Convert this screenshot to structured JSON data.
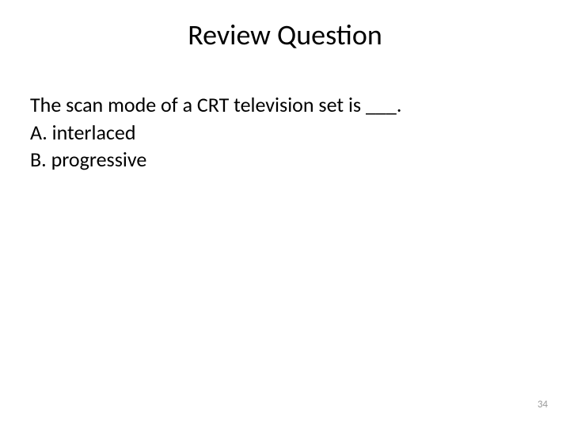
{
  "slide": {
    "title": "Review Question",
    "question": "The scan mode of a CRT television set is ___.",
    "options": [
      {
        "letter": "A.",
        "text": "interlaced"
      },
      {
        "letter": "B.",
        "text": "progressive"
      }
    ],
    "page_number": "34",
    "colors": {
      "background": "#ffffff",
      "text": "#000000",
      "page_num": "#9a9a9a"
    },
    "typography": {
      "title_fontsize": 36,
      "body_fontsize": 26,
      "pagenum_fontsize": 13,
      "font_family": "Calibri"
    }
  }
}
